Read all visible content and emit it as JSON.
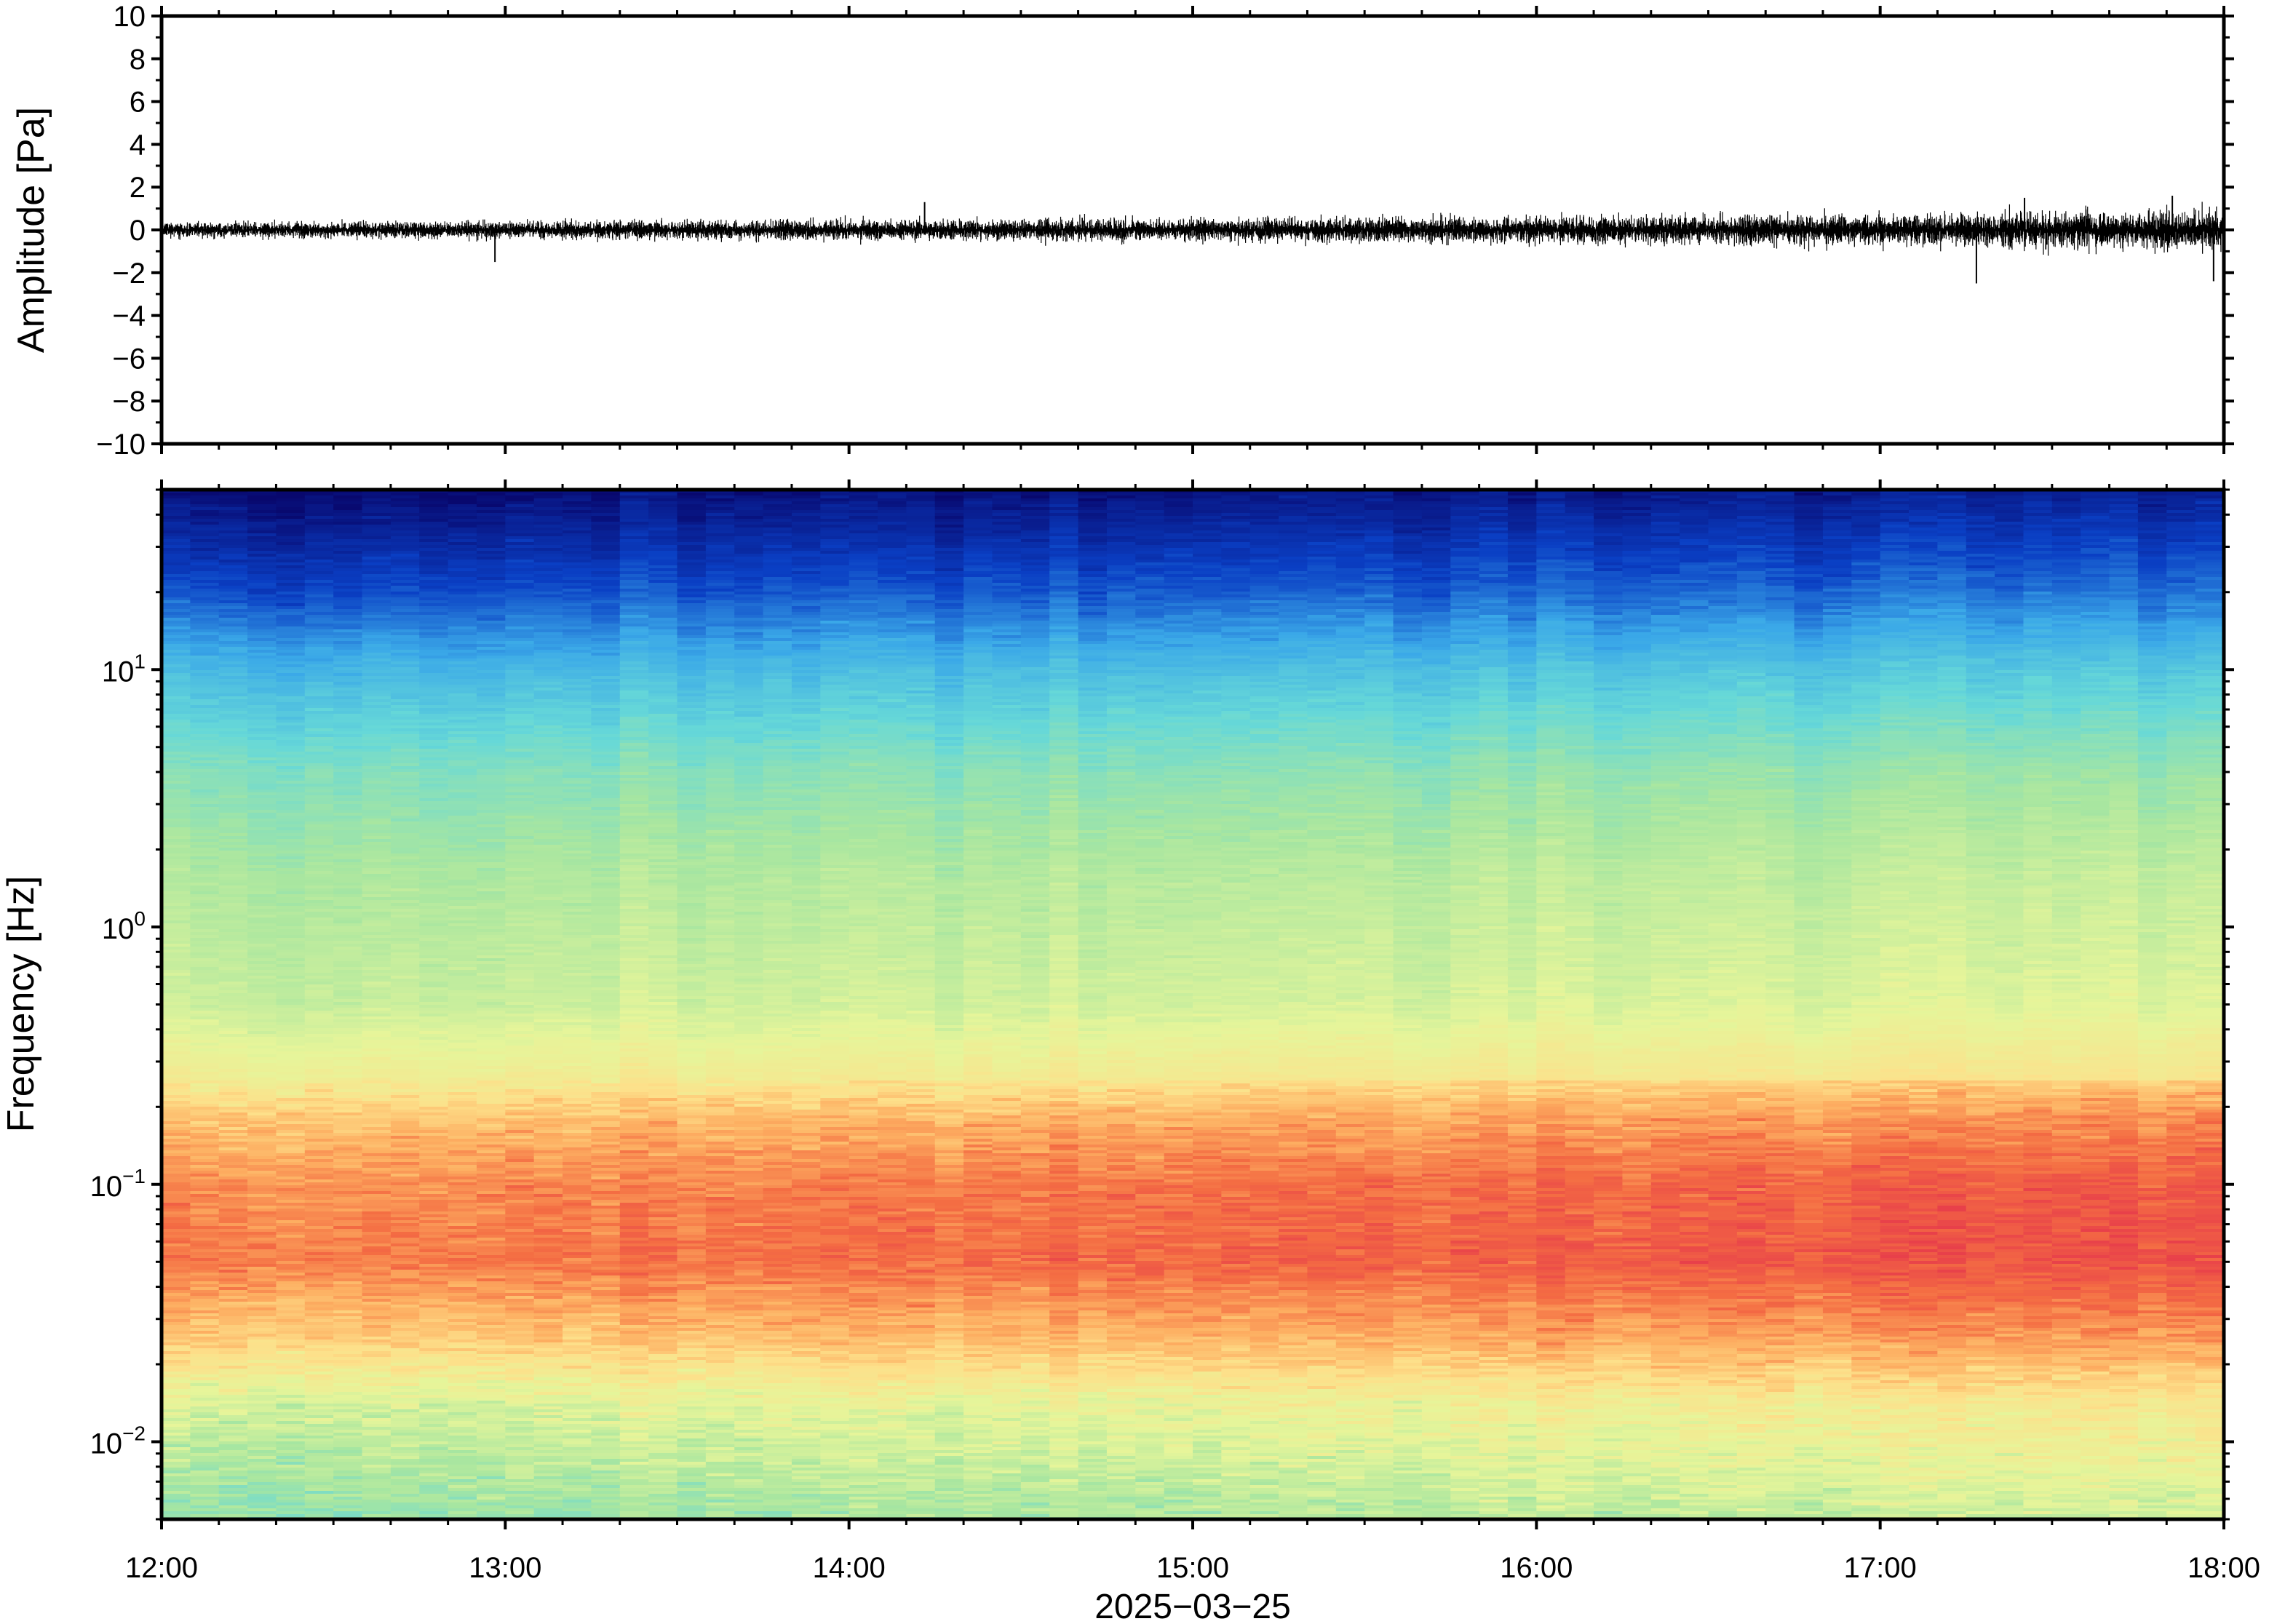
{
  "chart_data": [
    {
      "type": "line",
      "name": "waveform",
      "ylabel": "Amplitude [Pa]",
      "ylim": [
        -10,
        10
      ],
      "yticks": [
        10,
        8,
        6,
        4,
        2,
        0,
        -2,
        -4,
        -6,
        -8,
        -10
      ],
      "ytick_labels": [
        "10",
        "8",
        "6",
        "4",
        "2",
        "0",
        "−2",
        "−4",
        "−6",
        "−8",
        "−10"
      ],
      "x_range": [
        "12:00",
        "18:00"
      ],
      "envelope_hours": [
        0,
        0.5,
        1,
        1.5,
        2,
        2.5,
        3,
        3.5,
        4,
        4.5,
        5,
        5.5,
        6
      ],
      "envelope_pa": [
        0.4,
        0.45,
        0.5,
        0.55,
        0.6,
        0.6,
        0.65,
        0.7,
        0.75,
        0.85,
        0.9,
        1.0,
        1.2
      ],
      "spikes": [
        {
          "hour": 0.97,
          "value": -1.5
        },
        {
          "hour": 2.22,
          "value": 1.3
        },
        {
          "hour": 5.28,
          "value": -2.5
        },
        {
          "hour": 5.42,
          "value": 1.5
        },
        {
          "hour": 5.97,
          "value": -2.4
        },
        {
          "hour": 5.85,
          "value": 1.6
        }
      ]
    },
    {
      "type": "heatmap",
      "name": "spectrogram",
      "ylabel": "Frequency [Hz]",
      "yscale": "log",
      "ylim": [
        0.005,
        50
      ],
      "ytick_labels": [
        {
          "value": 10,
          "base": "10",
          "exp": "1"
        },
        {
          "value": 1,
          "base": "10",
          "exp": "0"
        },
        {
          "value": 0.1,
          "base": "10",
          "exp": "−1"
        },
        {
          "value": 0.01,
          "base": "10",
          "exp": "−2"
        }
      ],
      "colormap": "spectral",
      "colormap_stops": [
        "#08086e",
        "#0a3fc4",
        "#3aa8e8",
        "#66d8d8",
        "#a8e6a0",
        "#e6f59a",
        "#fde08a",
        "#fdae61",
        "#f46d43",
        "#e8404a"
      ],
      "relative_power_by_log10_freq": [
        {
          "log10_f": 1.7,
          "level": 0.0
        },
        {
          "log10_f": 1.3,
          "level": 0.12
        },
        {
          "log10_f": 1.0,
          "level": 0.25
        },
        {
          "log10_f": 0.6,
          "level": 0.38
        },
        {
          "log10_f": 0.2,
          "level": 0.45
        },
        {
          "log10_f": -0.3,
          "level": 0.5
        },
        {
          "log10_f": -0.6,
          "level": 0.6
        },
        {
          "log10_f": -0.75,
          "level": 0.72
        },
        {
          "log10_f": -1.0,
          "level": 0.82
        },
        {
          "log10_f": -1.3,
          "level": 0.85
        },
        {
          "log10_f": -1.6,
          "level": 0.7
        },
        {
          "log10_f": -1.85,
          "level": 0.52
        },
        {
          "log10_f": -2.3,
          "level": 0.4
        }
      ],
      "time_trend": [
        0.0,
        0.02,
        0.04,
        0.06,
        0.08,
        0.1,
        0.12
      ]
    }
  ],
  "xaxis": {
    "tick_labels": [
      "12:00",
      "13:00",
      "14:00",
      "15:00",
      "16:00",
      "17:00",
      "18:00"
    ],
    "tick_hours": [
      0,
      1,
      2,
      3,
      4,
      5,
      6
    ],
    "date_label": "2025−03−25"
  }
}
